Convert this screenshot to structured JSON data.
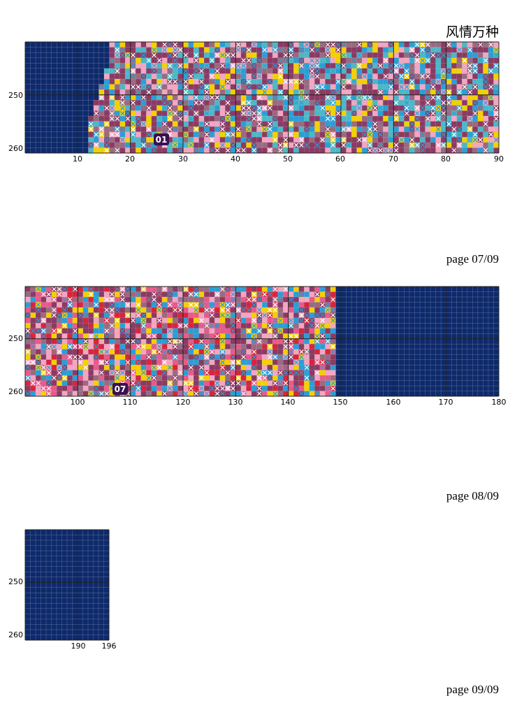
{
  "title": "风情万种",
  "panels": [
    {
      "row_labels": [
        "250",
        "260"
      ],
      "col_labels": [
        "10",
        "20",
        "30",
        "40",
        "50",
        "60",
        "70",
        "80",
        "90"
      ],
      "marker": "01",
      "page": "page 07/09"
    },
    {
      "row_labels": [
        "250",
        "260"
      ],
      "col_labels": [
        "100",
        "110",
        "120",
        "130",
        "140",
        "150",
        "160",
        "170",
        "180"
      ],
      "marker": "07",
      "page": "page 08/09"
    },
    {
      "row_labels": [
        "250",
        "260"
      ],
      "col_labels": [
        "190",
        "196"
      ],
      "page": "page 09/09"
    }
  ]
}
